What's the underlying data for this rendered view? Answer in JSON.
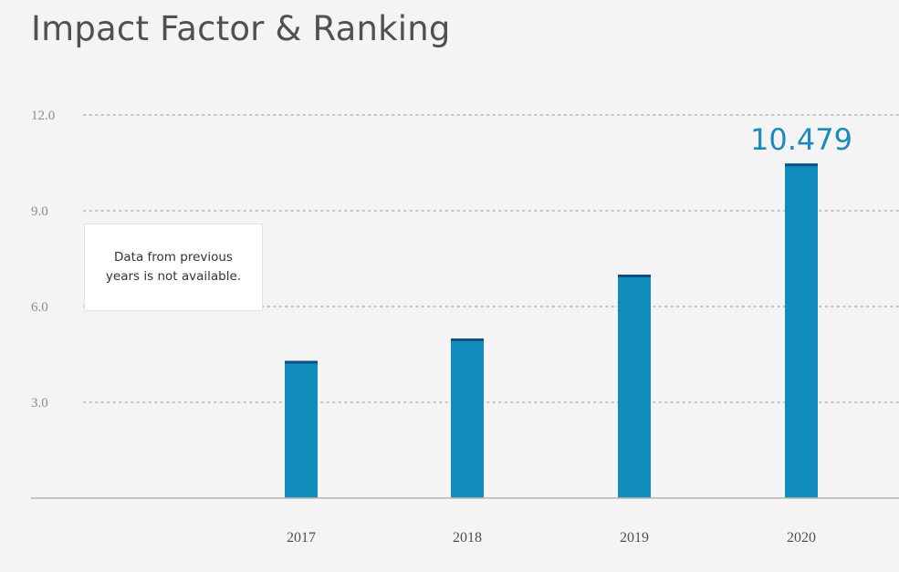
{
  "page": {
    "title": "Impact Factor & Ranking",
    "note": "Data from previous years is not available."
  },
  "colors": {
    "bar": "#118dbd",
    "bar_cap": "#0d4f86",
    "value_label": "#1b8bbd",
    "gridline": "#c4c4c4",
    "axis": "#b5b5b5"
  },
  "chart_data": {
    "type": "bar",
    "categories": [
      "2017",
      "2018",
      "2019",
      "2020"
    ],
    "values": [
      4.3,
      5.0,
      7.0,
      10.479
    ],
    "ylim": [
      0,
      12
    ],
    "yticks": [
      3.0,
      6.0,
      9.0,
      12.0
    ],
    "ytick_labels": [
      "3.0",
      "6.0",
      "9.0",
      "12.0"
    ],
    "highlight": {
      "category": "2020",
      "label": "10.479"
    },
    "grid": true,
    "title": "",
    "xlabel": "",
    "ylabel": ""
  }
}
